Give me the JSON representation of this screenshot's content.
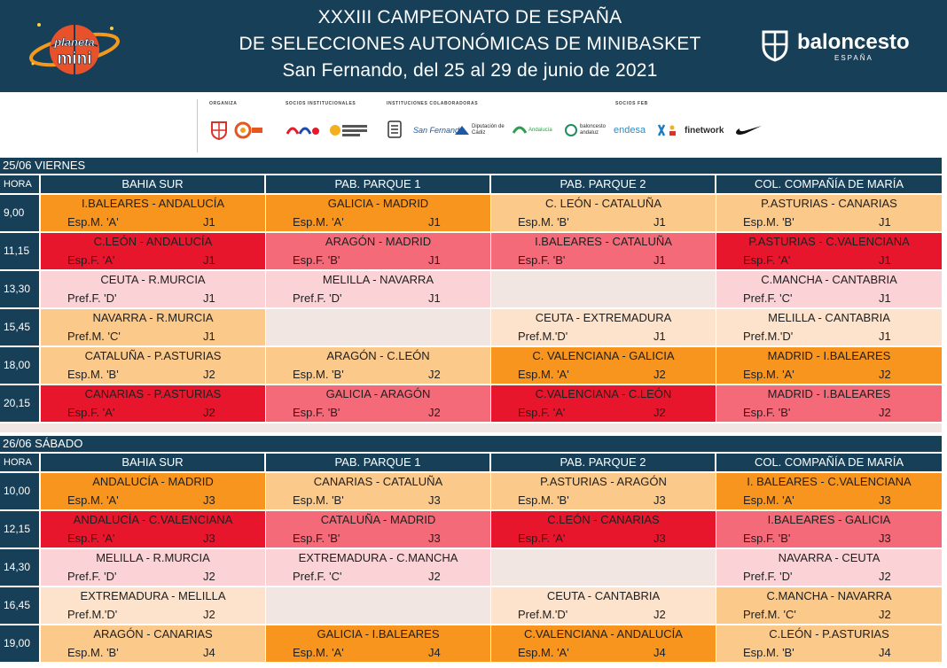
{
  "header": {
    "title_line1": "XXXIII CAMPEONATO DE ESPAÑA",
    "title_line2": "DE SELECCIONES AUTONÓMICAS DE MINIBASKET",
    "title_line3": "San Fernando, del 25 al 29 de junio de 2021",
    "logo_left_line1": "planeta",
    "logo_left_line2": "mini",
    "logo_right_word": "baloncesto",
    "logo_right_sub": "ESPAÑA"
  },
  "sponsors": {
    "labels": [
      "ORGANIZA",
      "SOCIOS INSTITUCIONALES",
      "INSTITUCIONES COLABORADORAS",
      "SOCIOS FEB"
    ],
    "names": [
      "San Fernando",
      "Diputación de Cádiz",
      "Andalucía",
      "baloncesto andaluz",
      "endesa",
      "finetwork"
    ]
  },
  "days": [
    {
      "label": "25/06 VIERNES",
      "hora_label": "HORA",
      "venues": [
        "BAHIA SUR",
        "PAB. PARQUE 1",
        "PAB. PARQUE 2",
        "COL. COMPAÑÍA DE MARÍA"
      ],
      "rows": [
        {
          "time": "9,00",
          "cells": [
            {
              "match": "I.BALEARES - ANDALUCÍA",
              "cat": "Esp.M. 'A'",
              "j": "J1",
              "color": "orange"
            },
            {
              "match": "GALICIA - MADRID",
              "cat": "Esp.M. 'A'",
              "j": "J1",
              "color": "orange"
            },
            {
              "match": "C. LEÓN - CATALUÑA",
              "cat": "Esp.M. 'B'",
              "j": "J1",
              "color": "light-orange"
            },
            {
              "match": "P.ASTURIAS - CANARIAS",
              "cat": "Esp.M. 'B'",
              "j": "J1",
              "color": "light-orange"
            }
          ]
        },
        {
          "time": "11,15",
          "cells": [
            {
              "match": "C.LEÓN - ANDALUCÍA",
              "cat": "Esp.F. 'A'",
              "j": "J1",
              "color": "red"
            },
            {
              "match": "ARAGÓN - MADRID",
              "cat": "Esp.F. 'B'",
              "j": "J1",
              "color": "pink"
            },
            {
              "match": "I.BALEARES - CATALUÑA",
              "cat": "Esp.F. 'B'",
              "j": "J1",
              "color": "pink"
            },
            {
              "match": "P.ASTURIAS - C.VALENCIANA",
              "cat": "Esp.F. 'A'",
              "j": "J1",
              "color": "red"
            }
          ]
        },
        {
          "time": "13,30",
          "cells": [
            {
              "match": "CEUTA - R.MURCIA",
              "cat": "Pref.F. 'D'",
              "j": "J1",
              "color": "light-pink"
            },
            {
              "match": "MELILLA - NAVARRA",
              "cat": "Pref.F. 'D'",
              "j": "J1",
              "color": "light-pink"
            },
            {
              "match": "",
              "cat": "",
              "j": "",
              "color": "empty"
            },
            {
              "match": "C.MANCHA - CANTABRIA",
              "cat": "Pref.F. 'C'",
              "j": "J1",
              "color": "light-pink"
            }
          ]
        },
        {
          "time": "15,45",
          "cells": [
            {
              "match": "NAVARRA - R.MURCIA",
              "cat": "Pref.M. 'C'",
              "j": "J1",
              "color": "light-orange"
            },
            {
              "match": "",
              "cat": "",
              "j": "",
              "color": "empty"
            },
            {
              "match": "CEUTA - EXTREMADURA",
              "cat": "Pref.M.'D'",
              "j": "J1",
              "color": "cream"
            },
            {
              "match": "MELILLA - CANTABRIA",
              "cat": "Pref.M.'D'",
              "j": "J1",
              "color": "cream"
            }
          ]
        },
        {
          "time": "18,00",
          "cells": [
            {
              "match": "CATALUÑA - P.ASTURIAS",
              "cat": "Esp.M. 'B'",
              "j": "J2",
              "color": "light-orange"
            },
            {
              "match": "ARAGÓN - C.LEÓN",
              "cat": "Esp.M. 'B'",
              "j": "J2",
              "color": "light-orange"
            },
            {
              "match": "C. VALENCIANA - GALICIA",
              "cat": "Esp.M. 'A'",
              "j": "J2",
              "color": "orange"
            },
            {
              "match": "MADRID - I.BALEARES",
              "cat": "Esp.M. 'A'",
              "j": "J2",
              "color": "orange"
            }
          ]
        },
        {
          "time": "20,15",
          "cells": [
            {
              "match": "CANARIAS - P.ASTURIAS",
              "cat": "Esp.F. 'A'",
              "j": "J2",
              "color": "red"
            },
            {
              "match": "GALICIA - ARAGÓN",
              "cat": "Esp.F. 'B'",
              "j": "J2",
              "color": "pink"
            },
            {
              "match": "C.VALENCIANA - C.LEÓN",
              "cat": "Esp.F. 'A'",
              "j": "J2",
              "color": "red"
            },
            {
              "match": "MADRID - I.BALEARES",
              "cat": "Esp.F. 'B'",
              "j": "J2",
              "color": "pink"
            }
          ]
        }
      ]
    },
    {
      "label": "26/06 SÁBADO",
      "hora_label": "HORA",
      "venues": [
        "BAHIA SUR",
        "PAB. PARQUE 1",
        "PAB. PARQUE 2",
        "COL. COMPAÑÍA DE MARÍA"
      ],
      "rows": [
        {
          "time": "10,00",
          "cells": [
            {
              "match": "ANDALUCÍA - MADRID",
              "cat": "Esp.M. 'A'",
              "j": "J3",
              "color": "orange"
            },
            {
              "match": "CANARIAS - CATALUÑA",
              "cat": "Esp.M. 'B'",
              "j": "J3",
              "color": "light-orange"
            },
            {
              "match": "P.ASTURIAS - ARAGÓN",
              "cat": "Esp.M. 'B'",
              "j": "J3",
              "color": "light-orange"
            },
            {
              "match": "I. BALEARES - C.VALENCIANA",
              "cat": "Esp.M. 'A'",
              "j": "J3",
              "color": "orange"
            }
          ]
        },
        {
          "time": "12,15",
          "cells": [
            {
              "match": "ANDALUCÍA - C.VALENCIANA",
              "cat": "Esp.F. 'A'",
              "j": "J3",
              "color": "red"
            },
            {
              "match": "CATALUÑA - MADRID",
              "cat": "Esp.F. 'B'",
              "j": "J3",
              "color": "pink"
            },
            {
              "match": "C.LEÓN - CANARIAS",
              "cat": "Esp.F. 'A'",
              "j": "J3",
              "color": "red"
            },
            {
              "match": "I.BALEARES - GALICIA",
              "cat": "Esp.F. 'B'",
              "j": "J3",
              "color": "pink"
            }
          ]
        },
        {
          "time": "14,30",
          "cells": [
            {
              "match": "MELILLA - R.MURCIA",
              "cat": "Pref.F. 'D'",
              "j": "J2",
              "color": "light-pink"
            },
            {
              "match": "EXTREMADURA - C.MANCHA",
              "cat": "Pref.F. 'C'",
              "j": "J2",
              "color": "light-pink"
            },
            {
              "match": "",
              "cat": "",
              "j": "",
              "color": "empty"
            },
            {
              "match": "NAVARRA - CEUTA",
              "cat": "Pref.F. 'D'",
              "j": "J2",
              "color": "light-pink"
            }
          ]
        },
        {
          "time": "16,45",
          "cells": [
            {
              "match": "EXTREMADURA - MELILLA",
              "cat": "Pref.M.'D'",
              "j": "J2",
              "color": "cream"
            },
            {
              "match": "",
              "cat": "",
              "j": "",
              "color": "empty"
            },
            {
              "match": "CEUTA - CANTABRIA",
              "cat": "Pref.M.'D'",
              "j": "J2",
              "color": "cream"
            },
            {
              "match": "C.MANCHA - NAVARRA",
              "cat": "Pref.M. 'C'",
              "j": "J2",
              "color": "light-orange"
            }
          ]
        },
        {
          "time": "19,00",
          "cells": [
            {
              "match": "ARAGÓN - CANARIAS",
              "cat": "Esp.M. 'B'",
              "j": "J4",
              "color": "light-orange"
            },
            {
              "match": "GALICIA - I.BALEARES",
              "cat": "Esp.M. 'A'",
              "j": "J4",
              "color": "orange"
            },
            {
              "match": "C.VALENCIANA - ANDALUCÍA",
              "cat": "Esp.M. 'A'",
              "j": "J4",
              "color": "orange"
            },
            {
              "match": "C.LEÓN - P.ASTURIAS",
              "cat": "Esp.M. 'B'",
              "j": "J4",
              "color": "light-orange"
            }
          ]
        }
      ]
    }
  ]
}
